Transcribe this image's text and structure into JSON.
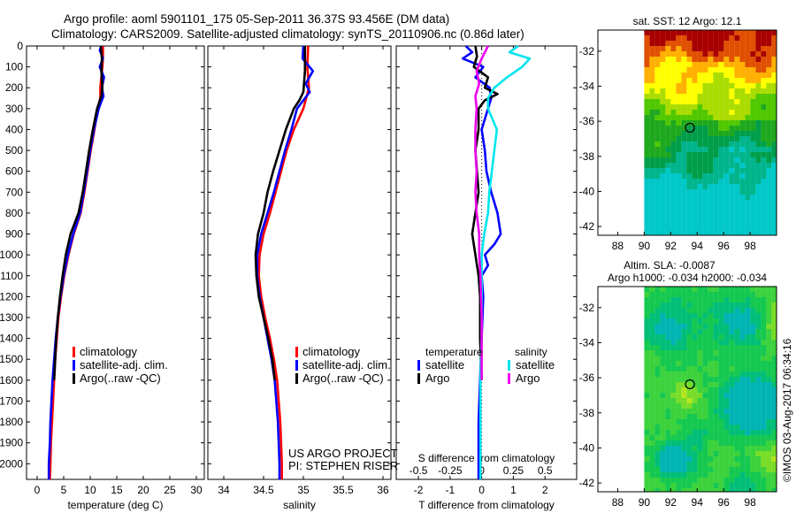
{
  "header": {
    "line1": "Argo profile: aoml 5901101_175 05-Sep-2011 36.37S 93.456E (DM data)",
    "line2": "Climatology: CARS2009. Satellite-adjusted climatology: synTS_20110906.nc (0.86d later)"
  },
  "credit": "©IMOS 03-Aug-2017 06:34:16",
  "colors": {
    "climatology": "#ff0000",
    "satellite": "#0000ff",
    "argo": "#000000",
    "sal_satellite": "#00e5ee",
    "sal_argo": "#ee00ee"
  },
  "chart_data": [
    {
      "type": "line",
      "title": "",
      "xlabel": "temperature (deg C)",
      "ylabel": "",
      "xlim": [
        -2,
        31.5
      ],
      "ylim": [
        2075,
        0
      ],
      "x_ticks": [
        "0",
        "5",
        "10",
        "15",
        "20",
        "25",
        "30"
      ],
      "y_ticks": [
        "0",
        "100",
        "200",
        "300",
        "400",
        "500",
        "600",
        "700",
        "800",
        "900",
        "1000",
        "1100",
        "1200",
        "1300",
        "1400",
        "1500",
        "1600",
        "1700",
        "1800",
        "1900",
        "2000"
      ],
      "legend": {
        "position": "lower-left",
        "entries": [
          "climatology",
          "satellite-adj. clim.",
          "Argo(..raw -QC)"
        ]
      },
      "series": [
        {
          "name": "climatology",
          "color": "#ff0000",
          "points": [
            [
              12.4,
              0
            ],
            [
              12.4,
              50
            ],
            [
              12.3,
              100
            ],
            [
              12.1,
              150
            ],
            [
              11.9,
              200
            ],
            [
              11.9,
              250
            ],
            [
              11.4,
              300
            ],
            [
              10.8,
              400
            ],
            [
              10.1,
              500
            ],
            [
              9.5,
              600
            ],
            [
              8.9,
              700
            ],
            [
              8.2,
              800
            ],
            [
              6.9,
              900
            ],
            [
              5.9,
              1000
            ],
            [
              5.1,
              1100
            ],
            [
              4.5,
              1200
            ],
            [
              4.0,
              1300
            ],
            [
              3.7,
              1400
            ],
            [
              3.4,
              1500
            ],
            [
              3.2,
              1600
            ],
            [
              3.0,
              1700
            ],
            [
              2.8,
              1800
            ],
            [
              2.6,
              1900
            ],
            [
              2.5,
              2000
            ],
            [
              2.4,
              2075
            ]
          ]
        },
        {
          "name": "satellite-adj. clim.",
          "color": "#0000ff",
          "points": [
            [
              12.1,
              0
            ],
            [
              11.8,
              20
            ],
            [
              12.4,
              60
            ],
            [
              11.8,
              100
            ],
            [
              12.6,
              150
            ],
            [
              12.2,
              200
            ],
            [
              12.5,
              240
            ],
            [
              11.6,
              300
            ],
            [
              10.7,
              400
            ],
            [
              10.0,
              500
            ],
            [
              9.4,
              600
            ],
            [
              8.8,
              700
            ],
            [
              8.1,
              800
            ],
            [
              6.8,
              900
            ],
            [
              5.8,
              1000
            ],
            [
              5.0,
              1100
            ],
            [
              4.4,
              1200
            ],
            [
              3.9,
              1300
            ],
            [
              3.5,
              1400
            ],
            [
              3.2,
              1500
            ],
            [
              2.9,
              1600
            ],
            [
              2.7,
              1700
            ],
            [
              2.5,
              1800
            ],
            [
              2.4,
              1900
            ],
            [
              2.2,
              2000
            ],
            [
              2.2,
              2075
            ]
          ]
        },
        {
          "name": "Argo(..raw -QC)",
          "color": "#000000",
          "points": [
            [
              12.0,
              0
            ],
            [
              12.2,
              60
            ],
            [
              12.1,
              120
            ],
            [
              12.3,
              200
            ],
            [
              12.1,
              240
            ],
            [
              11.3,
              300
            ],
            [
              10.5,
              400
            ],
            [
              9.8,
              500
            ],
            [
              9.2,
              600
            ],
            [
              8.6,
              700
            ],
            [
              7.8,
              800
            ],
            [
              6.3,
              900
            ],
            [
              5.4,
              1000
            ],
            [
              4.8,
              1100
            ],
            [
              4.3,
              1200
            ],
            [
              3.9,
              1300
            ],
            [
              3.6,
              1400
            ],
            [
              3.4,
              1500
            ],
            [
              3.2,
              1600
            ]
          ]
        }
      ]
    },
    {
      "type": "line",
      "title": "",
      "xlabel": "salinity",
      "ylabel": "",
      "xlim": [
        33.8,
        36.1
      ],
      "ylim": [
        2075,
        0
      ],
      "x_ticks": [
        "34",
        "34.5",
        "35",
        "35.5",
        "36"
      ],
      "legend": {
        "position": "lower-right",
        "entries": [
          "climatology",
          "satellite-adj. clim.",
          "Argo(..raw -QC)"
        ]
      },
      "annotations": [
        "US ARGO PROJECT",
        "PI: STEPHEN RISER"
      ],
      "series": [
        {
          "name": "climatology",
          "color": "#ff0000",
          "points": [
            [
              35.06,
              0
            ],
            [
              35.05,
              100
            ],
            [
              35.07,
              200
            ],
            [
              35.0,
              300
            ],
            [
              34.88,
              400
            ],
            [
              34.79,
              500
            ],
            [
              34.72,
              600
            ],
            [
              34.65,
              700
            ],
            [
              34.58,
              800
            ],
            [
              34.5,
              900
            ],
            [
              34.45,
              1000
            ],
            [
              34.44,
              1100
            ],
            [
              34.47,
              1200
            ],
            [
              34.52,
              1300
            ],
            [
              34.58,
              1400
            ],
            [
              34.63,
              1500
            ],
            [
              34.67,
              1600
            ],
            [
              34.69,
              1700
            ],
            [
              34.71,
              1800
            ],
            [
              34.72,
              1900
            ],
            [
              34.73,
              2000
            ],
            [
              34.73,
              2075
            ]
          ]
        },
        {
          "name": "satellite-adj. clim.",
          "color": "#0000ff",
          "points": [
            [
              35.0,
              0
            ],
            [
              34.99,
              60
            ],
            [
              35.12,
              120
            ],
            [
              35.03,
              180
            ],
            [
              35.08,
              220
            ],
            [
              35.0,
              260
            ],
            [
              34.92,
              300
            ],
            [
              34.85,
              400
            ],
            [
              34.77,
              500
            ],
            [
              34.7,
              600
            ],
            [
              34.63,
              700
            ],
            [
              34.55,
              800
            ],
            [
              34.47,
              900
            ],
            [
              34.42,
              1000
            ],
            [
              34.42,
              1100
            ],
            [
              34.45,
              1200
            ],
            [
              34.5,
              1300
            ],
            [
              34.55,
              1400
            ],
            [
              34.6,
              1500
            ],
            [
              34.64,
              1600
            ],
            [
              34.66,
              1700
            ],
            [
              34.68,
              1800
            ],
            [
              34.69,
              1900
            ],
            [
              34.7,
              2000
            ],
            [
              34.7,
              2075
            ]
          ]
        },
        {
          "name": "Argo(..raw -QC)",
          "color": "#000000",
          "points": [
            [
              35.02,
              0
            ],
            [
              35.02,
              120
            ],
            [
              35.0,
              220
            ],
            [
              34.95,
              260
            ],
            [
              34.88,
              300
            ],
            [
              34.78,
              400
            ],
            [
              34.7,
              500
            ],
            [
              34.62,
              600
            ],
            [
              34.55,
              700
            ],
            [
              34.5,
              800
            ],
            [
              34.43,
              900
            ],
            [
              34.4,
              1000
            ],
            [
              34.41,
              1100
            ],
            [
              34.44,
              1200
            ],
            [
              34.5,
              1300
            ],
            [
              34.56,
              1400
            ],
            [
              34.61,
              1500
            ],
            [
              34.64,
              1600
            ]
          ]
        }
      ]
    },
    {
      "type": "line",
      "title": "",
      "xlabel": "T difference from climatology",
      "top_label": "S difference from climatology",
      "xlim": [
        -2.7,
        3.0
      ],
      "ylim": [
        2075,
        0
      ],
      "x_ticks": [
        "-2",
        "-1",
        "0",
        "1",
        "2"
      ],
      "top_ticks": [
        "-0.5",
        "-0.25",
        "0",
        "0.25",
        "0.5"
      ],
      "legend": {
        "position": "lower",
        "temperature_heading": "temperature",
        "salinity_heading": "salinity",
        "entries": [
          "satellite",
          "Argo",
          "satellite",
          "Argo"
        ]
      },
      "series": [
        {
          "name": "satellite",
          "group": "temperature",
          "color": "#0000ff",
          "points": [
            [
              -0.5,
              0
            ],
            [
              -0.3,
              30
            ],
            [
              -0.6,
              60
            ],
            [
              0.05,
              100
            ],
            [
              -0.2,
              150
            ],
            [
              0.25,
              200
            ],
            [
              0.3,
              250
            ],
            [
              0.2,
              300
            ],
            [
              0.0,
              400
            ],
            [
              0.1,
              500
            ],
            [
              0.15,
              600
            ],
            [
              0.3,
              700
            ],
            [
              0.5,
              800
            ],
            [
              0.6,
              900
            ],
            [
              0.4,
              950
            ],
            [
              0.1,
              1000
            ],
            [
              0.2,
              1050
            ],
            [
              0.0,
              1100
            ],
            [
              0.05,
              1200
            ],
            [
              0.0,
              1400
            ],
            [
              -0.05,
              1600
            ],
            [
              -0.1,
              1800
            ],
            [
              -0.1,
              2000
            ],
            [
              -0.1,
              2075
            ]
          ]
        },
        {
          "name": "Argo",
          "group": "temperature",
          "color": "#000000",
          "points": [
            [
              -0.2,
              0
            ],
            [
              -0.15,
              50
            ],
            [
              -0.25,
              100
            ],
            [
              0.2,
              150
            ],
            [
              0.1,
              200
            ],
            [
              0.5,
              230
            ],
            [
              0.1,
              260
            ],
            [
              -0.1,
              300
            ],
            [
              -0.1,
              400
            ],
            [
              -0.2,
              500
            ],
            [
              -0.15,
              600
            ],
            [
              -0.1,
              700
            ],
            [
              -0.2,
              800
            ],
            [
              -0.3,
              900
            ],
            [
              -0.2,
              1000
            ],
            [
              -0.1,
              1100
            ],
            [
              -0.05,
              1200
            ],
            [
              -0.05,
              1400
            ],
            [
              0.0,
              1600
            ]
          ]
        },
        {
          "name": "satellite",
          "group": "salinity",
          "color": "#00e5ee",
          "points": [
            [
              0.29,
              0
            ],
            [
              0.22,
              30
            ],
            [
              0.38,
              60
            ],
            [
              0.32,
              100
            ],
            [
              0.2,
              150
            ],
            [
              0.1,
              200
            ],
            [
              0.05,
              250
            ],
            [
              0.05,
              300
            ],
            [
              0.12,
              400
            ],
            [
              0.1,
              500
            ],
            [
              0.08,
              600
            ],
            [
              0.06,
              700
            ],
            [
              0.05,
              800
            ],
            [
              0.02,
              900
            ],
            [
              0.0,
              1000
            ],
            [
              0.0,
              1200
            ],
            [
              0.0,
              1400
            ],
            [
              -0.01,
              1600
            ],
            [
              -0.01,
              1800
            ],
            [
              -0.01,
              2000
            ],
            [
              -0.01,
              2075
            ]
          ]
        },
        {
          "name": "Argo",
          "group": "salinity",
          "color": "#ee00ee",
          "points": [
            [
              0.05,
              0
            ],
            [
              0.0,
              60
            ],
            [
              -0.04,
              120
            ],
            [
              -0.02,
              180
            ],
            [
              -0.05,
              240
            ],
            [
              -0.04,
              300
            ],
            [
              -0.05,
              400
            ],
            [
              -0.05,
              500
            ],
            [
              -0.04,
              600
            ],
            [
              -0.05,
              700
            ],
            [
              -0.04,
              800
            ],
            [
              -0.02,
              900
            ],
            [
              -0.02,
              1000
            ],
            [
              -0.01,
              1100
            ],
            [
              0.0,
              1300
            ],
            [
              0.0,
              1600
            ]
          ]
        }
      ]
    },
    {
      "type": "heatmap",
      "title": "sat. SST: 12 Argo: 12.1",
      "x_ticks": [
        "88",
        "90",
        "92",
        "94",
        "96",
        "98"
      ],
      "y_ticks": [
        "-32",
        "-34",
        "-36",
        "-38",
        "-40",
        "-42"
      ],
      "xlim": [
        86.5,
        100
      ],
      "ylim": [
        -42.5,
        -30.8
      ],
      "data_xlim": [
        90,
        100
      ],
      "marker": {
        "lon": 93.456,
        "lat": -36.37
      },
      "palette": [
        "#00c8c8",
        "#00b48c",
        "#009e4a",
        "#1ea81e",
        "#50c800",
        "#aadc00",
        "#ffff00",
        "#ffb000",
        "#e05000",
        "#a80000"
      ]
    },
    {
      "type": "heatmap",
      "title": "Altim. SLA: -0.0087",
      "subtitle": "Argo h1000: -0.034 h2000: -0.034",
      "x_ticks": [
        "88",
        "90",
        "92",
        "94",
        "96",
        "98"
      ],
      "y_ticks": [
        "-32",
        "-34",
        "-36",
        "-38",
        "-40",
        "-42"
      ],
      "xlim": [
        86.5,
        100
      ],
      "ylim": [
        -42.5,
        -30.8
      ],
      "data_xlim": [
        90,
        100
      ],
      "marker": {
        "lon": 93.456,
        "lat": -36.37
      },
      "palette": [
        "#00b4b4",
        "#00be78",
        "#14c850",
        "#3cd23c",
        "#78dc28",
        "#b4e61e",
        "#e6f01e"
      ]
    }
  ]
}
